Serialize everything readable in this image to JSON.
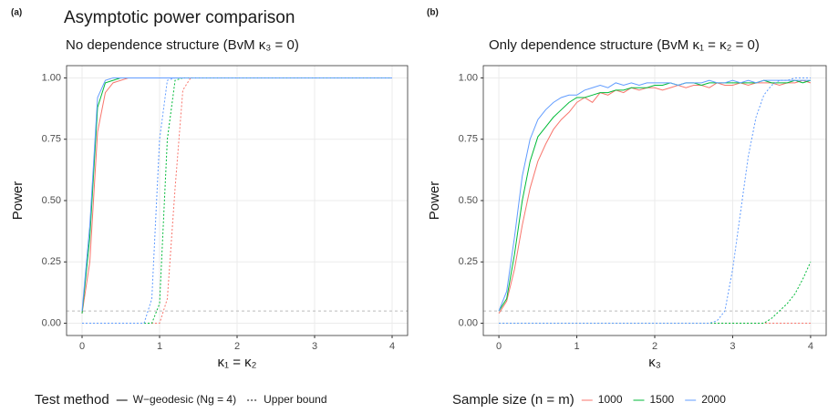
{
  "chart_data": [
    {
      "type": "line",
      "tag": "(a)",
      "title": "Asymptotic power comparison",
      "subtitle": "No dependence structure (BvM κ₃ = 0)",
      "x_label": "κ₁ = κ₂",
      "y_label": "Power",
      "xlim": [
        -0.2,
        4.2
      ],
      "ylim": [
        -0.05,
        1.05
      ],
      "xticks": [
        0,
        1,
        2,
        3,
        4
      ],
      "yticks": [
        {
          "value": 0,
          "label": "0.00"
        },
        {
          "value": 0.25,
          "label": "0.25"
        },
        {
          "value": 0.5,
          "label": "0.50"
        },
        {
          "value": 0.75,
          "label": "0.75"
        },
        {
          "value": 1,
          "label": "1.00"
        }
      ],
      "grid": true,
      "hline": 0.05,
      "legend": {
        "title": "Test method",
        "position": "bottom",
        "entries": [
          {
            "label": "W−geodesic (Ng = 4)",
            "color": "#000000",
            "dash": "solid"
          },
          {
            "label": "Upper bound",
            "color": "#000000",
            "dash": "dotted"
          }
        ]
      },
      "x": [
        0,
        0.1,
        0.2,
        0.3,
        0.4,
        0.5,
        0.6,
        0.7,
        0.8,
        0.9,
        1,
        1.1,
        1.2,
        1.3,
        1.4,
        1.5,
        1.6,
        1.7,
        1.8,
        1.9,
        2,
        2.1,
        2.2,
        2.3,
        2.4,
        2.5,
        2.6,
        2.7,
        2.8,
        2.9,
        3,
        3.1,
        3.2,
        3.3,
        3.4,
        3.5,
        3.6,
        3.7,
        3.8,
        3.9,
        4
      ],
      "series": [
        {
          "color": "#F8766D",
          "dash": "solid",
          "values": [
            0.04,
            0.25,
            0.78,
            0.94,
            0.98,
            0.99,
            1,
            1,
            1,
            1,
            1,
            1,
            1,
            1,
            1,
            1,
            1,
            1,
            1,
            1,
            1,
            1,
            1,
            1,
            1,
            1,
            1,
            1,
            1,
            1,
            1,
            1,
            1,
            1,
            1,
            1,
            1,
            1,
            1,
            1,
            1
          ]
        },
        {
          "color": "#00BA38",
          "dash": "solid",
          "values": [
            0.04,
            0.35,
            0.88,
            0.98,
            0.99,
            1,
            1,
            1,
            1,
            1,
            1,
            1,
            1,
            1,
            1,
            1,
            1,
            1,
            1,
            1,
            1,
            1,
            1,
            1,
            1,
            1,
            1,
            1,
            1,
            1,
            1,
            1,
            1,
            1,
            1,
            1,
            1,
            1,
            1,
            1,
            1
          ]
        },
        {
          "color": "#619CFF",
          "dash": "solid",
          "values": [
            0.05,
            0.4,
            0.92,
            0.99,
            1,
            1,
            1,
            1,
            1,
            1,
            1,
            1,
            1,
            1,
            1,
            1,
            1,
            1,
            1,
            1,
            1,
            1,
            1,
            1,
            1,
            1,
            1,
            1,
            1,
            1,
            1,
            1,
            1,
            1,
            1,
            1,
            1,
            1,
            1,
            1,
            1
          ]
        },
        {
          "color": "#F8766D",
          "dash": "dotted",
          "values": [
            0,
            0,
            0,
            0,
            0,
            0,
            0,
            0,
            0,
            0,
            0,
            0.1,
            0.55,
            0.95,
            1,
            1,
            1,
            1,
            1,
            1,
            1,
            1,
            1,
            1,
            1,
            1,
            1,
            1,
            1,
            1,
            1,
            1,
            1,
            1,
            1,
            1,
            1,
            1,
            1,
            1,
            1
          ]
        },
        {
          "color": "#00BA38",
          "dash": "dotted",
          "values": [
            0,
            0,
            0,
            0,
            0,
            0,
            0,
            0,
            0,
            0,
            0.08,
            0.75,
            0.99,
            1,
            1,
            1,
            1,
            1,
            1,
            1,
            1,
            1,
            1,
            1,
            1,
            1,
            1,
            1,
            1,
            1,
            1,
            1,
            1,
            1,
            1,
            1,
            1,
            1,
            1,
            1,
            1
          ]
        },
        {
          "color": "#619CFF",
          "dash": "dotted",
          "values": [
            0,
            0,
            0,
            0,
            0,
            0,
            0,
            0,
            0,
            0.1,
            0.75,
            0.99,
            1,
            1,
            1,
            1,
            1,
            1,
            1,
            1,
            1,
            1,
            1,
            1,
            1,
            1,
            1,
            1,
            1,
            1,
            1,
            1,
            1,
            1,
            1,
            1,
            1,
            1,
            1,
            1,
            1
          ]
        }
      ]
    },
    {
      "type": "line",
      "tag": "(b)",
      "subtitle": "Only dependence structure (BvM κ₁ = κ₂ = 0)",
      "x_label": "κ₃",
      "y_label": "Power",
      "xlim": [
        -0.2,
        4.2
      ],
      "ylim": [
        -0.05,
        1.05
      ],
      "xticks": [
        0,
        1,
        2,
        3,
        4
      ],
      "yticks": [
        {
          "value": 0,
          "label": "0.00"
        },
        {
          "value": 0.25,
          "label": "0.25"
        },
        {
          "value": 0.5,
          "label": "0.50"
        },
        {
          "value": 0.75,
          "label": "0.75"
        },
        {
          "value": 1,
          "label": "1.00"
        }
      ],
      "grid": true,
      "hline": 0.05,
      "legend": {
        "title": "Sample size (n = m)",
        "position": "bottom",
        "entries": [
          {
            "label": "1000",
            "color": "#F8766D",
            "dash": "solid"
          },
          {
            "label": "1500",
            "color": "#00BA38",
            "dash": "solid"
          },
          {
            "label": "2000",
            "color": "#619CFF",
            "dash": "solid"
          }
        ]
      },
      "x": [
        0,
        0.1,
        0.2,
        0.3,
        0.4,
        0.5,
        0.6,
        0.7,
        0.8,
        0.9,
        1,
        1.1,
        1.2,
        1.3,
        1.4,
        1.5,
        1.6,
        1.7,
        1.8,
        1.9,
        2,
        2.1,
        2.2,
        2.3,
        2.4,
        2.5,
        2.6,
        2.7,
        2.8,
        2.9,
        3,
        3.1,
        3.2,
        3.3,
        3.4,
        3.5,
        3.6,
        3.7,
        3.8,
        3.9,
        4
      ],
      "series": [
        {
          "color": "#F8766D",
          "dash": "solid",
          "values": [
            0.04,
            0.09,
            0.22,
            0.4,
            0.55,
            0.66,
            0.73,
            0.79,
            0.83,
            0.86,
            0.9,
            0.92,
            0.9,
            0.94,
            0.93,
            0.95,
            0.94,
            0.96,
            0.95,
            0.96,
            0.96,
            0.95,
            0.96,
            0.97,
            0.96,
            0.97,
            0.97,
            0.96,
            0.98,
            0.97,
            0.97,
            0.98,
            0.97,
            0.98,
            0.98,
            0.98,
            0.97,
            0.98,
            0.98,
            0.99,
            0.98
          ]
        },
        {
          "color": "#00BA38",
          "dash": "solid",
          "values": [
            0.05,
            0.1,
            0.28,
            0.5,
            0.66,
            0.76,
            0.8,
            0.84,
            0.87,
            0.9,
            0.92,
            0.92,
            0.93,
            0.94,
            0.94,
            0.95,
            0.95,
            0.96,
            0.96,
            0.96,
            0.97,
            0.97,
            0.98,
            0.97,
            0.98,
            0.98,
            0.97,
            0.98,
            0.98,
            0.98,
            0.98,
            0.98,
            0.98,
            0.98,
            0.99,
            0.98,
            0.98,
            0.98,
            0.99,
            0.98,
            0.99
          ]
        },
        {
          "color": "#619CFF",
          "dash": "solid",
          "values": [
            0.05,
            0.13,
            0.35,
            0.6,
            0.75,
            0.83,
            0.87,
            0.9,
            0.92,
            0.93,
            0.93,
            0.95,
            0.96,
            0.97,
            0.96,
            0.98,
            0.97,
            0.98,
            0.97,
            0.98,
            0.98,
            0.98,
            0.98,
            0.97,
            0.98,
            0.98,
            0.98,
            0.99,
            0.98,
            0.98,
            0.99,
            0.98,
            0.99,
            0.98,
            0.99,
            0.99,
            0.99,
            0.99,
            0.99,
            0.99,
            0.99
          ]
        },
        {
          "color": "#F8766D",
          "dash": "dotted",
          "values": [
            0,
            0,
            0,
            0,
            0,
            0,
            0,
            0,
            0,
            0,
            0,
            0,
            0,
            0,
            0,
            0,
            0,
            0,
            0,
            0,
            0,
            0,
            0,
            0,
            0,
            0,
            0,
            0,
            0,
            0,
            0,
            0,
            0,
            0,
            0,
            0,
            0,
            0,
            0,
            0,
            0
          ]
        },
        {
          "color": "#00BA38",
          "dash": "dotted",
          "values": [
            0,
            0,
            0,
            0,
            0,
            0,
            0,
            0,
            0,
            0,
            0,
            0,
            0,
            0,
            0,
            0,
            0,
            0,
            0,
            0,
            0,
            0,
            0,
            0,
            0,
            0,
            0,
            0,
            0,
            0,
            0,
            0,
            0,
            0,
            0,
            0.02,
            0.05,
            0.08,
            0.12,
            0.18,
            0.25
          ]
        },
        {
          "color": "#619CFF",
          "dash": "dotted",
          "values": [
            0,
            0,
            0,
            0,
            0,
            0,
            0,
            0,
            0,
            0,
            0,
            0,
            0,
            0,
            0,
            0,
            0,
            0,
            0,
            0,
            0,
            0,
            0,
            0,
            0,
            0,
            0,
            0,
            0.01,
            0.05,
            0.22,
            0.45,
            0.68,
            0.84,
            0.93,
            0.97,
            0.99,
            0.99,
            1,
            1,
            1
          ]
        }
      ]
    }
  ]
}
